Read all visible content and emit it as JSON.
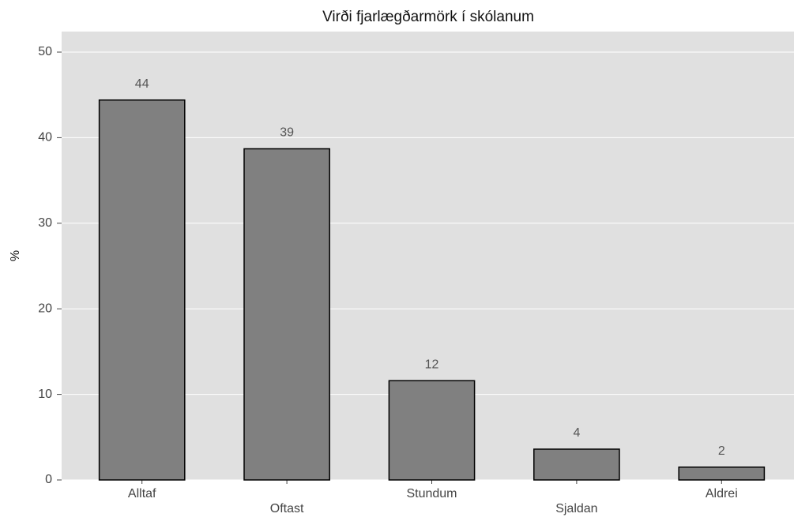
{
  "chart_data": {
    "type": "bar",
    "title": "Virði fjarlægðarmörk í skólanum",
    "y_label": "%",
    "categories": [
      "Alltaf",
      "Oftast",
      "Stundum",
      "Sjaldan",
      "Aldrei"
    ],
    "values": [
      44.4,
      38.7,
      11.6,
      3.6,
      1.5
    ],
    "value_labels": [
      "44",
      "39",
      "12",
      "4",
      "2"
    ],
    "color": "#808080",
    "ylim": [
      0,
      52.4
    ],
    "yticks": [
      0,
      10,
      20,
      30,
      40,
      50
    ],
    "grid": true
  }
}
